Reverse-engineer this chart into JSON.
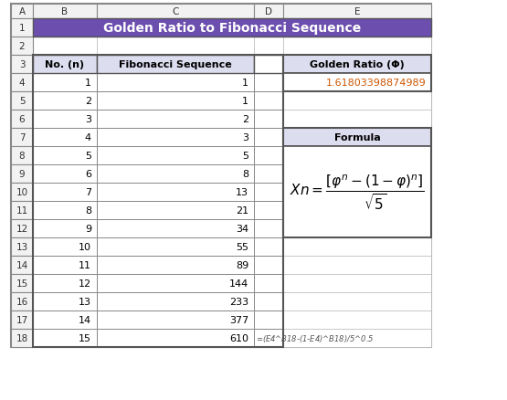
{
  "title": "Golden Ratio to Fibonacci Sequence",
  "title_bg": "#6B4EAE",
  "title_color": "#FFFFFF",
  "col_header_b": "No. (n)",
  "col_header_c": "Fibonacci Sequence",
  "col_e_header": "Golden Ratio (Φ)",
  "golden_ratio_value": "1.61803398874989",
  "golden_ratio_color": "#CC5500",
  "formula_label": "Formula",
  "formula_header_bg": "#DDDDF0",
  "table_header_bg": "#DDDDF0",
  "row_numbers": [
    1,
    2,
    3,
    4,
    5,
    6,
    7,
    8,
    9,
    10,
    11,
    12,
    13,
    14,
    15
  ],
  "fib_values": [
    1,
    1,
    2,
    3,
    5,
    8,
    13,
    21,
    34,
    55,
    89,
    144,
    233,
    377,
    610
  ],
  "excel_formula": "=($E$4^B18-(1-$E$4)^B18)/5^0.5",
  "col_labels": [
    "A",
    "B",
    "C",
    "D",
    "E"
  ],
  "bg_color": "#FFFFFF",
  "cell_border": "#BBBBBB",
  "header_border": "#999999",
  "col_header_row_bg": "#F2F2F2",
  "row_header_bg": "#F2F2F2"
}
